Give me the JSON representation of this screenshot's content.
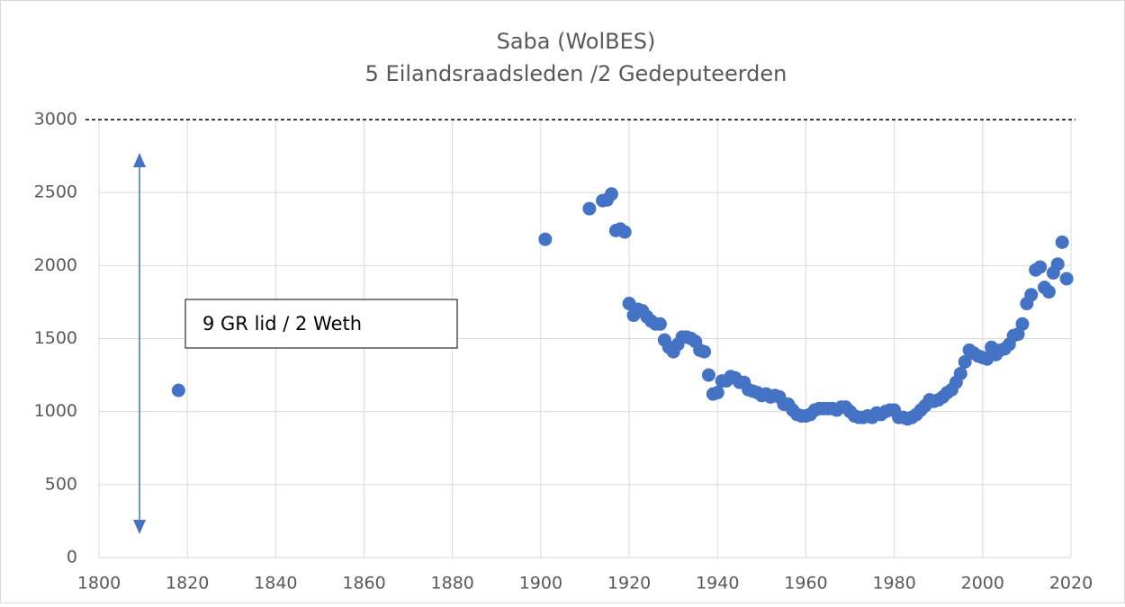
{
  "chart_data": {
    "type": "scatter",
    "title": "Saba (WolBES)",
    "subtitle": "5 Eilandsraadsleden /2 Gedeputeerden",
    "annotation": "9 GR lid / 2 Weth",
    "color": "#4472c4",
    "grid": true,
    "xlim": [
      1800,
      2020
    ],
    "xticks": [
      1800,
      1820,
      1840,
      1860,
      1880,
      1900,
      1920,
      1940,
      1960,
      1980,
      2000,
      2020
    ],
    "ylim": [
      0,
      3000
    ],
    "yticks": [
      0,
      500,
      1000,
      1500,
      2000,
      2500,
      3000
    ],
    "x": [
      1818,
      1901,
      1911,
      1914,
      1915,
      1916,
      1917,
      1918,
      1919,
      1920,
      1921,
      1922,
      1923,
      1924,
      1925,
      1926,
      1927,
      1928,
      1929,
      1930,
      1931,
      1932,
      1933,
      1934,
      1935,
      1936,
      1937,
      1938,
      1939,
      1940,
      1941,
      1942,
      1943,
      1944,
      1945,
      1946,
      1947,
      1948,
      1949,
      1950,
      1951,
      1952,
      1953,
      1954,
      1955,
      1956,
      1957,
      1958,
      1959,
      1960,
      1961,
      1962,
      1963,
      1964,
      1965,
      1966,
      1967,
      1968,
      1969,
      1970,
      1971,
      1972,
      1973,
      1974,
      1975,
      1976,
      1977,
      1978,
      1979,
      1980,
      1981,
      1982,
      1983,
      1984,
      1985,
      1986,
      1987,
      1988,
      1989,
      1990,
      1991,
      1992,
      1993,
      1994,
      1995,
      1996,
      1997,
      1998,
      1999,
      2000,
      2001,
      2002,
      2003,
      2004,
      2005,
      2006,
      2007,
      2008,
      2009,
      2010,
      2011,
      2012,
      2013,
      2014,
      2015,
      2016,
      2017,
      2018,
      2019
    ],
    "values": [
      1145,
      2180,
      2390,
      2445,
      2450,
      2490,
      2240,
      2250,
      2230,
      1740,
      1660,
      1700,
      1690,
      1650,
      1620,
      1600,
      1600,
      1490,
      1440,
      1410,
      1460,
      1510,
      1510,
      1500,
      1480,
      1420,
      1410,
      1250,
      1120,
      1130,
      1210,
      1210,
      1240,
      1230,
      1200,
      1200,
      1150,
      1140,
      1130,
      1110,
      1120,
      1100,
      1110,
      1100,
      1050,
      1050,
      1010,
      980,
      970,
      970,
      980,
      1010,
      1020,
      1020,
      1020,
      1020,
      1010,
      1030,
      1030,
      1000,
      970,
      960,
      960,
      970,
      960,
      990,
      980,
      1000,
      1010,
      1010,
      960,
      960,
      950,
      960,
      980,
      1010,
      1040,
      1080,
      1070,
      1080,
      1100,
      1130,
      1150,
      1200,
      1260,
      1340,
      1420,
      1400,
      1380,
      1370,
      1360,
      1440,
      1390,
      1420,
      1430,
      1460,
      1520,
      1530,
      1600,
      1740,
      1800,
      1970,
      1990,
      1850,
      1820,
      1950,
      2010,
      2160,
      1910
    ]
  }
}
